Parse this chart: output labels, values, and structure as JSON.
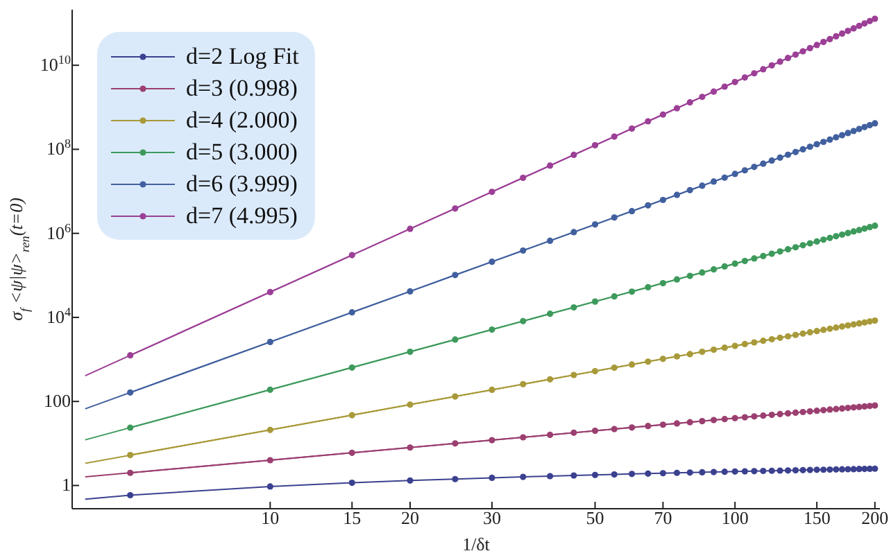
{
  "chart_data": {
    "type": "line",
    "xlabel": "1/δt",
    "ylabel": "σ$_{f}$ <ψ|ψ>$_{ren}$(t=0)",
    "log": "xy",
    "marker": "circle",
    "legend": "top left",
    "grid": false,
    "xlim": [
      3.75,
      205
    ],
    "xticks": [
      10,
      15,
      20,
      30,
      50,
      70,
      100,
      150,
      200
    ],
    "ylim": [
      0.28,
      210000000000.0
    ],
    "yticks": [
      1,
      100,
      {
        "value": 10000,
        "label": "10$^{4}$"
      },
      {
        "value": 1000000,
        "label": "10$^{6}$"
      },
      {
        "value": 100000000,
        "label": "10$^{8}$"
      },
      {
        "value": 10000000000,
        "label": "10$^{10}$"
      }
    ],
    "x": [
      5,
      10,
      15,
      20,
      25,
      30,
      35,
      40,
      45,
      50,
      55,
      60,
      65,
      70,
      75,
      80,
      85,
      90,
      95,
      100,
      105,
      110,
      115,
      120,
      125,
      130,
      135,
      140,
      145,
      150,
      155,
      160,
      165,
      170,
      175,
      180,
      185,
      190,
      195,
      200
    ],
    "series": [
      {
        "name": "d=2 Log Fit",
        "color": "#3b418f",
        "values": [
          0.587,
          0.947,
          1.16,
          1.31,
          1.42,
          1.52,
          1.6,
          1.67,
          1.73,
          1.78,
          1.83,
          1.88,
          1.92,
          1.96,
          2.0,
          2.03,
          2.06,
          2.09,
          2.12,
          2.15,
          2.17,
          2.19,
          2.22,
          2.24,
          2.26,
          2.28,
          2.3,
          2.32,
          2.34,
          2.36,
          2.37,
          2.39,
          2.41,
          2.42,
          2.44,
          2.45,
          2.47,
          2.48,
          2.49,
          2.51
        ]
      },
      {
        "name": "d=3 (0.998)",
        "color": "#9b3f70",
        "values": [
          2,
          4,
          6,
          8,
          10,
          12,
          14,
          16,
          18,
          20,
          22,
          24,
          26,
          28,
          30,
          32,
          34,
          36,
          38,
          40,
          42,
          44,
          46,
          48,
          50,
          52,
          54,
          56,
          58,
          60,
          62,
          64,
          66,
          68,
          70,
          72,
          74,
          76,
          78,
          80
        ]
      },
      {
        "name": "d=4 (2.000)",
        "color": "#a89a3a",
        "values": [
          5.3,
          21,
          47,
          84,
          131,
          189,
          257,
          336,
          425,
          525,
          635,
          756,
          887,
          1030,
          1180,
          1340,
          1520,
          1700,
          1900,
          2100,
          2320,
          2540,
          2780,
          3020,
          3280,
          3550,
          3830,
          4120,
          4420,
          4730,
          5050,
          5380,
          5720,
          6070,
          6430,
          6800,
          7190,
          7580,
          7990,
          8400
        ]
      },
      {
        "name": "d=5 (3.000)",
        "color": "#3e9a5c",
        "values": [
          23.8,
          190,
          641,
          1520,
          2970,
          5130,
          8150,
          12200,
          17300,
          23800,
          31600,
          41000,
          52200,
          65200,
          80200,
          97300,
          117000,
          139000,
          163000,
          190000,
          220000,
          253000,
          289000,
          328000,
          371000,
          417000,
          467000,
          521000,
          579000,
          641000,
          708000,
          778000,
          854000,
          933000,
          1020000,
          1110000,
          1200000,
          1300000,
          1410000,
          1520000
        ]
      },
      {
        "name": "d=6 (3.999)",
        "color": "#41609f",
        "values": [
          163,
          2600,
          13200,
          41600,
          102000,
          211000,
          390000,
          666000,
          1070000,
          1630000,
          2380000,
          3370000,
          4640000,
          6240000,
          8230000,
          10700000,
          13600000,
          17100000,
          21200000,
          26000000,
          31600000,
          38100000,
          45500000,
          53900000,
          63500000,
          74300000,
          86400000,
          99900000,
          115000000,
          132000000,
          150000000,
          170000000,
          193000000,
          217000000,
          244000000,
          273000000,
          305000000,
          339000000,
          376000000,
          416000000
        ]
      },
      {
        "name": "d=7 (4.995)",
        "color": "#9c3f96",
        "values": [
          1250,
          40000,
          304000,
          1280000,
          3910000,
          9720000,
          21000000,
          41000000,
          73800000,
          125000000,
          201000000,
          311000000,
          464000000,
          672000000,
          949000000,
          1310000000,
          1770000000,
          2360000000,
          3100000000,
          4000000000,
          5110000000,
          6440000000,
          8050000000,
          9950000000,
          12200000000,
          14900000000,
          17900000000,
          21500000000,
          25600000000,
          30400000000,
          35800000000,
          41900000000,
          48900000000,
          56800000000,
          65700000000,
          75600000000,
          86700000000,
          99000000000,
          113000000000,
          128000000000
        ]
      },
      {
        "type": "line",
        "marker": "none",
        "color": "#3b418f",
        "x": [
          4,
          5
        ],
        "values": [
          0.47,
          0.587
        ]
      },
      {
        "type": "line",
        "marker": "none",
        "color": "#9b3f70",
        "x": [
          4,
          200
        ],
        "values": [
          1.6,
          80
        ]
      },
      {
        "type": "line",
        "marker": "none",
        "color": "#a89a3a",
        "x": [
          4,
          200
        ],
        "values": [
          3.36,
          8400
        ]
      },
      {
        "type": "line",
        "marker": "none",
        "color": "#3e9a5c",
        "x": [
          4,
          200
        ],
        "values": [
          12.2,
          1520000
        ]
      },
      {
        "type": "line",
        "marker": "none",
        "color": "#41609f",
        "x": [
          4,
          200
        ],
        "values": [
          66.6,
          416000000
        ]
      },
      {
        "type": "line",
        "marker": "none",
        "color": "#9c3f96",
        "x": [
          4,
          200
        ],
        "values": [
          410,
          128000000000
        ]
      }
    ]
  }
}
